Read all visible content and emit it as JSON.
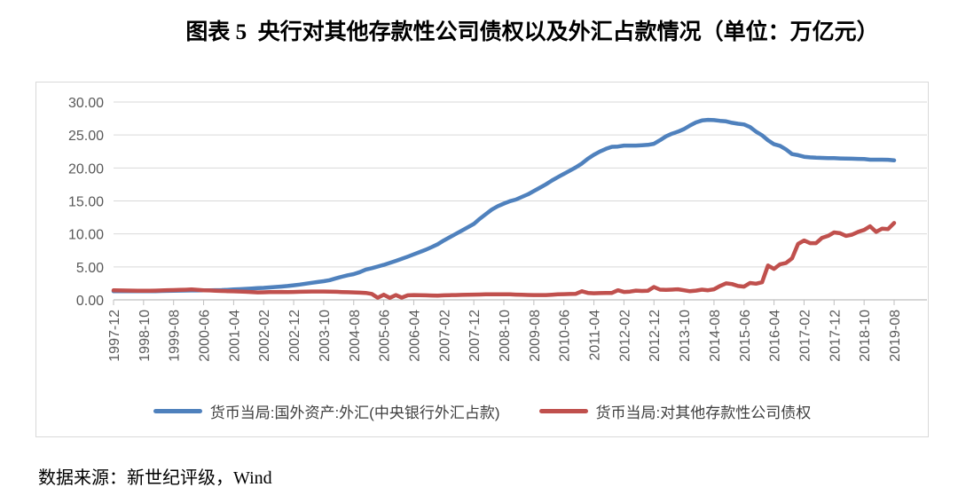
{
  "page": {
    "title": "图表 5  央行对其他存款性公司债权以及外汇占款情况（单位：万亿元）",
    "source_note": "数据来源：新世纪评级，Wind"
  },
  "colors": {
    "gridline": "#d9d9d9",
    "axis": "#bfbfbf",
    "tick_label": "#595959",
    "chart_border": "#d9d9d9",
    "series_fx_blue": "#4F81BD",
    "series_claims_red": "#C0504D"
  },
  "chart_data": {
    "type": "line",
    "title": "图表 5  央行对其他存款性公司债权以及外汇占款情况（单位：万亿元）",
    "xlabel": "",
    "ylabel": "",
    "ylim": [
      0,
      30
    ],
    "y_tick_step": 5,
    "y_tick_labels": [
      "30.00",
      "25.00",
      "20.00",
      "15.00",
      "10.00",
      "5.00",
      "0.00"
    ],
    "grid": "horizontal",
    "legend_position": "bottom",
    "x_first": "1997-12",
    "x_interval_months": 2,
    "x_tick_every_points": 5,
    "x_tick_labels": [
      "1997-12",
      "1998-10",
      "1999-08",
      "2000-06",
      "2001-04",
      "2002-02",
      "2002-12",
      "2003-10",
      "2004-08",
      "2005-06",
      "2006-04",
      "2007-02",
      "2007-12",
      "2008-10",
      "2009-08",
      "2010-06",
      "2011-04",
      "2012-02",
      "2012-12",
      "2013-10",
      "2014-08",
      "2015-06",
      "2016-04",
      "2017-02",
      "2017-12",
      "2018-10",
      "2019-08"
    ],
    "series": [
      {
        "name": "货币当局:国外资产:外汇(中央银行外汇占款)",
        "color": "#4F81BD",
        "values": [
          1.3,
          1.3,
          1.3,
          1.31,
          1.31,
          1.31,
          1.31,
          1.32,
          1.34,
          1.36,
          1.38,
          1.4,
          1.41,
          1.42,
          1.43,
          1.44,
          1.45,
          1.46,
          1.48,
          1.52,
          1.57,
          1.62,
          1.67,
          1.72,
          1.77,
          1.82,
          1.88,
          1.95,
          2.02,
          2.1,
          2.21,
          2.32,
          2.45,
          2.58,
          2.7,
          2.83,
          2.98,
          3.25,
          3.5,
          3.72,
          3.9,
          4.2,
          4.59,
          4.8,
          5.05,
          5.3,
          5.6,
          5.9,
          6.21,
          6.55,
          6.9,
          7.25,
          7.6,
          8.0,
          8.44,
          9.0,
          9.5,
          10.0,
          10.5,
          11.0,
          11.52,
          12.3,
          13.0,
          13.7,
          14.2,
          14.6,
          14.96,
          15.2,
          15.6,
          16.0,
          16.5,
          17.0,
          17.52,
          18.1,
          18.6,
          19.1,
          19.6,
          20.1,
          20.68,
          21.4,
          22.0,
          22.5,
          22.9,
          23.2,
          23.24,
          23.4,
          23.4,
          23.4,
          23.45,
          23.5,
          23.67,
          24.2,
          24.8,
          25.2,
          25.5,
          25.9,
          26.43,
          26.9,
          27.2,
          27.3,
          27.25,
          27.15,
          27.07,
          26.85,
          26.7,
          26.6,
          26.2,
          25.5,
          24.95,
          24.2,
          23.6,
          23.35,
          22.8,
          22.1,
          21.94,
          21.7,
          21.6,
          21.55,
          21.52,
          21.5,
          21.48,
          21.45,
          21.42,
          21.4,
          21.38,
          21.35,
          21.26,
          21.25,
          21.25,
          21.24,
          21.15
        ]
      },
      {
        "name": "货币当局:对其他存款性公司债权",
        "color": "#C0504D",
        "values": [
          1.44,
          1.42,
          1.41,
          1.4,
          1.39,
          1.38,
          1.37,
          1.4,
          1.43,
          1.46,
          1.48,
          1.51,
          1.54,
          1.58,
          1.5,
          1.45,
          1.42,
          1.38,
          1.35,
          1.32,
          1.29,
          1.26,
          1.22,
          1.17,
          1.13,
          1.15,
          1.17,
          1.19,
          1.2,
          1.19,
          1.2,
          1.22,
          1.24,
          1.26,
          1.27,
          1.26,
          1.25,
          1.22,
          1.19,
          1.16,
          1.13,
          1.09,
          1.05,
          0.9,
          0.32,
          0.78,
          0.3,
          0.72,
          0.33,
          0.68,
          0.73,
          0.7,
          0.68,
          0.66,
          0.65,
          0.68,
          0.71,
          0.73,
          0.75,
          0.77,
          0.79,
          0.81,
          0.83,
          0.84,
          0.85,
          0.85,
          0.84,
          0.8,
          0.77,
          0.74,
          0.73,
          0.72,
          0.72,
          0.78,
          0.83,
          0.86,
          0.89,
          0.92,
          1.3,
          1.05,
          1.0,
          1.02,
          1.03,
          1.05,
          1.45,
          1.2,
          1.25,
          1.4,
          1.35,
          1.38,
          1.95,
          1.55,
          1.5,
          1.55,
          1.6,
          1.45,
          1.31,
          1.4,
          1.55,
          1.45,
          1.6,
          2.1,
          2.5,
          2.4,
          2.1,
          2.0,
          2.55,
          2.45,
          2.66,
          5.2,
          4.7,
          5.4,
          5.6,
          6.3,
          8.47,
          9.0,
          8.6,
          8.59,
          9.4,
          9.7,
          10.22,
          10.1,
          9.7,
          9.89,
          10.3,
          10.6,
          11.15,
          10.3,
          10.8,
          10.73,
          11.65
        ]
      }
    ]
  }
}
